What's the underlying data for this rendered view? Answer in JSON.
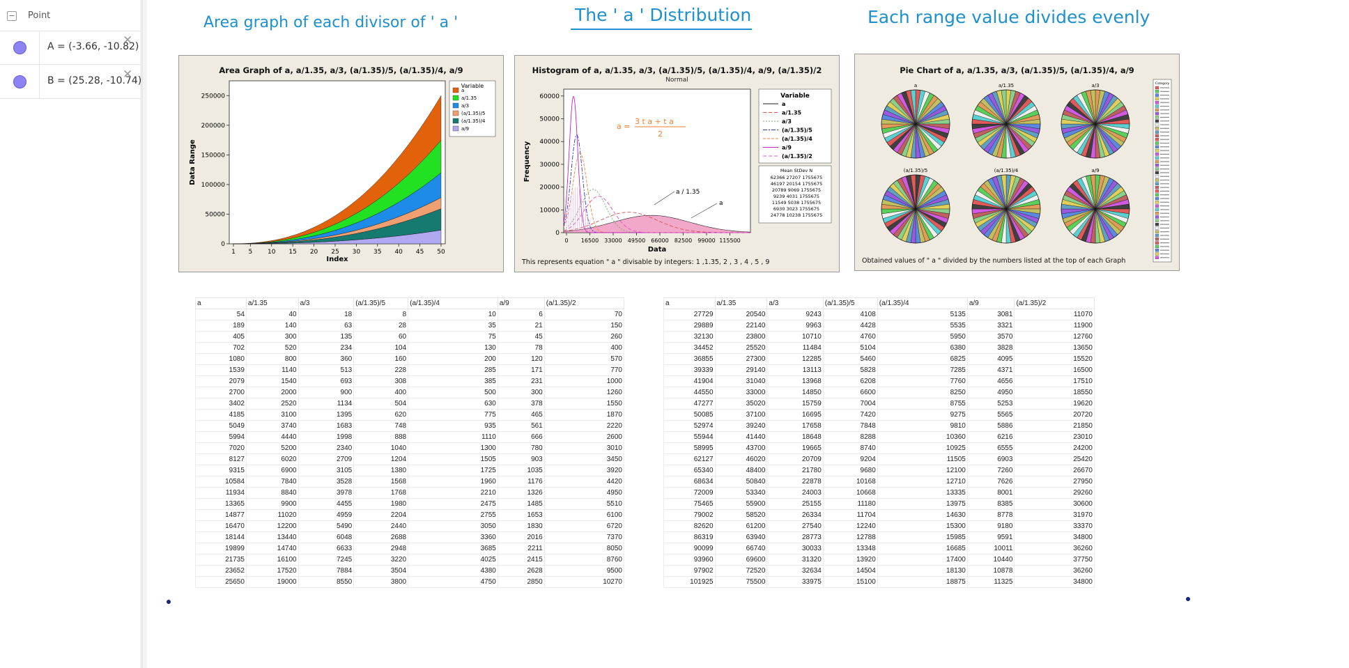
{
  "algebra": {
    "title": "Point",
    "items": [
      {
        "label": "A = (-3.66, -10.82)"
      },
      {
        "label": "B = (25.28, -10.74)"
      }
    ]
  },
  "titles": {
    "left": "Area graph of each divisor of ' a '",
    "middle": "The  ' a '  Distribution",
    "right": "Each range value divides evenly"
  },
  "area_panel": {
    "title": "Area Graph of a, a/1.35, a/3, (a/1.35)/5, (a/1.35)/4, a/9",
    "legend_title": "Variable",
    "legend": [
      {
        "name": "a",
        "color": "#e2620c"
      },
      {
        "name": "a/1.35",
        "color": "#22e022"
      },
      {
        "name": "a/3",
        "color": "#1e8be8"
      },
      {
        "name": "(a/1.35)/5",
        "color": "#f0a070"
      },
      {
        "name": "(a/1.35)/4",
        "color": "#157a70"
      },
      {
        "name": "a/9",
        "color": "#b0a8f0"
      }
    ],
    "ylabel": "Data Range",
    "xlabel": "Index",
    "yticks": [
      "0",
      "50000",
      "100000",
      "150000",
      "200000",
      "250000"
    ],
    "xticks": [
      "1",
      "5",
      "10",
      "15",
      "20",
      "25",
      "30",
      "35",
      "40",
      "45",
      "50"
    ]
  },
  "hist_panel": {
    "title": "Histogram of a, a/1.35, a/3, (a/1.35)/5, (a/1.35)/4, a/9, (a/1.35)/2",
    "subtitle": "Normal",
    "ylabel": "Frequency",
    "xlabel": "Data",
    "yticks": [
      "0",
      "10000",
      "20000",
      "30000",
      "40000",
      "50000",
      "60000"
    ],
    "xticks": [
      "0",
      "16500",
      "33000",
      "49500",
      "66000",
      "82500",
      "99000",
      "115500"
    ],
    "equation": "a =  3 t a + t²a² / 2",
    "eq_lhs": "a =",
    "eq_num": "3 t a + t a",
    "eq_den": "2",
    "annot1": "a / 1.35",
    "annot2": "a",
    "legend_title": "Variable",
    "legend": [
      {
        "name": "a",
        "color": "#222222"
      },
      {
        "name": "a/1.35",
        "color": "#e05050"
      },
      {
        "name": "a/3",
        "color": "#60b060"
      },
      {
        "name": "(a/1.35)/5",
        "color": "#2040c0"
      },
      {
        "name": "(a/1.35)/4",
        "color": "#f08030"
      },
      {
        "name": "a/9",
        "color": "#c020c0"
      },
      {
        "name": "(a/1.35)/2",
        "color": "#e050c0"
      }
    ],
    "stats_header": "Mean  StDev       N",
    "stats": [
      "62366  27207  1755675",
      "46197  20154  1755675",
      "20789   9069  1755675",
      "  9239   4031  1755675",
      "11549   5038  1755675",
      "  6930   3023  1755675",
      "24778  10238  1755675"
    ],
    "caption": "This represents equation \" a \" divisable by integers: 1 ,1.35, 2 , 3 , 4 , 5 , 9"
  },
  "pie_panel": {
    "title": "Pie Chart of a, a/1.35, a/3, (a/1.35)/5, (a/1.35)/4, a/9",
    "labels": [
      "a",
      "a/1.35",
      "a/3",
      "(a/1.35)/5",
      "(a/1.35)/4",
      "a/9"
    ],
    "caption": "Obtained values of \" a  \" divided by the numbers listed at the top of each Graph",
    "legend_title": "Category"
  },
  "table_left": {
    "headers": [
      "a",
      "a/1.35",
      "a/3",
      "(a/1.35)/5",
      "(a/1.35)/4",
      "a/9",
      "(a/1.35)/2"
    ],
    "rows": [
      [
        "54",
        "40",
        "18",
        "8",
        "10",
        "6",
        "70"
      ],
      [
        "189",
        "140",
        "63",
        "28",
        "35",
        "21",
        "150"
      ],
      [
        "405",
        "300",
        "135",
        "60",
        "75",
        "45",
        "260"
      ],
      [
        "702",
        "520",
        "234",
        "104",
        "130",
        "78",
        "400"
      ],
      [
        "1080",
        "800",
        "360",
        "160",
        "200",
        "120",
        "570"
      ],
      [
        "1539",
        "1140",
        "513",
        "228",
        "285",
        "171",
        "770"
      ],
      [
        "2079",
        "1540",
        "693",
        "308",
        "385",
        "231",
        "1000"
      ],
      [
        "2700",
        "2000",
        "900",
        "400",
        "500",
        "300",
        "1260"
      ],
      [
        "3402",
        "2520",
        "1134",
        "504",
        "630",
        "378",
        "1550"
      ],
      [
        "4185",
        "3100",
        "1395",
        "620",
        "775",
        "465",
        "1870"
      ],
      [
        "5049",
        "3740",
        "1683",
        "748",
        "935",
        "561",
        "2220"
      ],
      [
        "5994",
        "4440",
        "1998",
        "888",
        "1110",
        "666",
        "2600"
      ],
      [
        "7020",
        "5200",
        "2340",
        "1040",
        "1300",
        "780",
        "3010"
      ],
      [
        "8127",
        "6020",
        "2709",
        "1204",
        "1505",
        "903",
        "3450"
      ],
      [
        "9315",
        "6900",
        "3105",
        "1380",
        "1725",
        "1035",
        "3920"
      ],
      [
        "10584",
        "7840",
        "3528",
        "1568",
        "1960",
        "1176",
        "4420"
      ],
      [
        "11934",
        "8840",
        "3978",
        "1768",
        "2210",
        "1326",
        "4950"
      ],
      [
        "13365",
        "9900",
        "4455",
        "1980",
        "2475",
        "1485",
        "5510"
      ],
      [
        "14877",
        "11020",
        "4959",
        "2204",
        "2755",
        "1653",
        "6100"
      ],
      [
        "16470",
        "12200",
        "5490",
        "2440",
        "3050",
        "1830",
        "6720"
      ],
      [
        "18144",
        "13440",
        "6048",
        "2688",
        "3360",
        "2016",
        "7370"
      ],
      [
        "19899",
        "14740",
        "6633",
        "2948",
        "3685",
        "2211",
        "8050"
      ],
      [
        "21735",
        "16100",
        "7245",
        "3220",
        "4025",
        "2415",
        "8760"
      ],
      [
        "23652",
        "17520",
        "7884",
        "3504",
        "4380",
        "2628",
        "9500"
      ],
      [
        "25650",
        "19000",
        "8550",
        "3800",
        "4750",
        "2850",
        "10270"
      ]
    ]
  },
  "table_right": {
    "headers": [
      "a",
      "a/1.35",
      "a/3",
      "(a/1.35)/5",
      "(a/1.35)/4",
      "a/9",
      "(a/1.35)/2"
    ],
    "rows": [
      [
        "27729",
        "20540",
        "9243",
        "4108",
        "5135",
        "3081",
        "11070"
      ],
      [
        "29889",
        "22140",
        "9963",
        "4428",
        "5535",
        "3321",
        "11900"
      ],
      [
        "32130",
        "23800",
        "10710",
        "4760",
        "5950",
        "3570",
        "12760"
      ],
      [
        "34452",
        "25520",
        "11484",
        "5104",
        "6380",
        "3828",
        "13650"
      ],
      [
        "36855",
        "27300",
        "12285",
        "5460",
        "6825",
        "4095",
        "15520"
      ],
      [
        "39339",
        "29140",
        "13113",
        "5828",
        "7285",
        "4371",
        "16500"
      ],
      [
        "41904",
        "31040",
        "13968",
        "6208",
        "7760",
        "4656",
        "17510"
      ],
      [
        "44550",
        "33000",
        "14850",
        "6600",
        "8250",
        "4950",
        "18550"
      ],
      [
        "47277",
        "35020",
        "15759",
        "7004",
        "8755",
        "5253",
        "19620"
      ],
      [
        "50085",
        "37100",
        "16695",
        "7420",
        "9275",
        "5565",
        "20720"
      ],
      [
        "52974",
        "39240",
        "17658",
        "7848",
        "9810",
        "5886",
        "21850"
      ],
      [
        "55944",
        "41440",
        "18648",
        "8288",
        "10360",
        "6216",
        "23010"
      ],
      [
        "58995",
        "43700",
        "19665",
        "8740",
        "10925",
        "6555",
        "24200"
      ],
      [
        "62127",
        "46020",
        "20709",
        "9204",
        "11505",
        "6903",
        "25420"
      ],
      [
        "65340",
        "48400",
        "21780",
        "9680",
        "12100",
        "7260",
        "26670"
      ],
      [
        "68634",
        "50840",
        "22878",
        "10168",
        "12710",
        "7626",
        "27950"
      ],
      [
        "72009",
        "53340",
        "24003",
        "10668",
        "13335",
        "8001",
        "29260"
      ],
      [
        "75465",
        "55900",
        "25155",
        "11180",
        "13975",
        "8385",
        "30600"
      ],
      [
        "79002",
        "58520",
        "26334",
        "11704",
        "14630",
        "8778",
        "31970"
      ],
      [
        "82620",
        "61200",
        "27540",
        "12240",
        "15300",
        "9180",
        "33370"
      ],
      [
        "86319",
        "63940",
        "28773",
        "12788",
        "15985",
        "9591",
        "34800"
      ],
      [
        "90099",
        "66740",
        "30033",
        "13348",
        "16685",
        "10011",
        "36260"
      ],
      [
        "93960",
        "69600",
        "31320",
        "13920",
        "17400",
        "10440",
        "37750"
      ],
      [
        "97902",
        "72520",
        "32634",
        "14504",
        "18130",
        "10878",
        "36260"
      ],
      [
        "101925",
        "75500",
        "33975",
        "15100",
        "18875",
        "11325",
        "34800"
      ]
    ]
  }
}
